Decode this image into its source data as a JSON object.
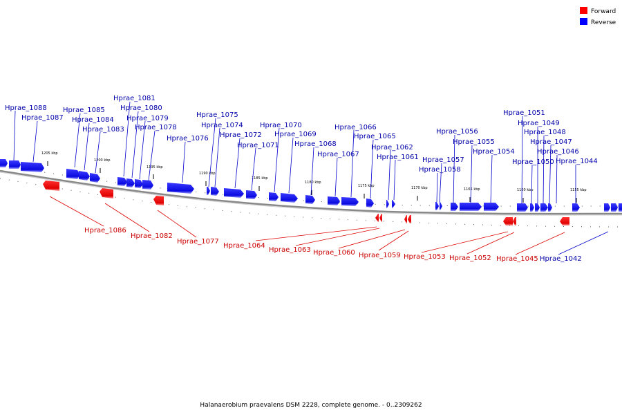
{
  "caption": "Halanaerobium praevalens DSM 2228, complete genome. - 0..2309262",
  "legend": [
    {
      "label": "Forward",
      "color": "#ff0000"
    },
    {
      "label": "Reverse",
      "color": "#0000ff"
    }
  ],
  "colors": {
    "forward": "#ff0000",
    "reverse": "#1a1aff",
    "forward_label": "#cc0000",
    "reverse_label": "#0000aa"
  },
  "scale_ticks": [
    "1205 kbp",
    "1200 kbp",
    "1195 kbp",
    "1190 kbp",
    "1185 kbp",
    "1180 kbp",
    "1175 kbp",
    "1170 kbp",
    "1165 kbp",
    "1160 kbp",
    "1155 kbp"
  ],
  "reverse_genes": [
    "Hprae_1088",
    "Hprae_1087",
    "Hprae_1085",
    "Hprae_1084",
    "Hprae_1083",
    "Hprae_1081",
    "Hprae_1080",
    "Hprae_1079",
    "Hprae_1078",
    "Hprae_1076",
    "Hprae_1075",
    "Hprae_1074",
    "Hprae_1072",
    "Hprae_1071",
    "Hprae_1070",
    "Hprae_1069",
    "Hprae_1068",
    "Hprae_1067",
    "Hprae_1066",
    "Hprae_1065",
    "Hprae_1062",
    "Hprae_1061",
    "Hprae_1057",
    "Hprae_1058",
    "Hprae_1056",
    "Hprae_1055",
    "Hprae_1054",
    "Hprae_1051",
    "Hprae_1049",
    "Hprae_1048",
    "Hprae_1047",
    "Hprae_1050",
    "Hprae_1046",
    "Hprae_1044",
    "Hprae_1042"
  ],
  "forward_genes": [
    "Hprae_1086",
    "Hprae_1082",
    "Hprae_1077",
    "Hprae_1064",
    "Hprae_1063",
    "Hprae_1060",
    "Hprae_1059",
    "Hprae_1053",
    "Hprae_1052",
    "Hprae_1045"
  ]
}
